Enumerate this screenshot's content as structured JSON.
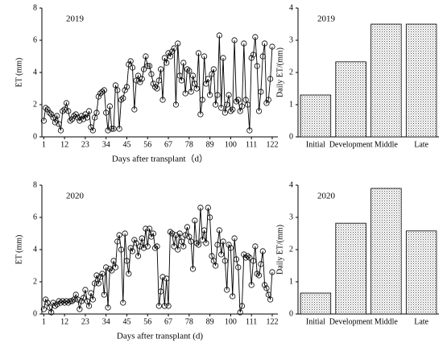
{
  "chart_data": [
    {
      "type": "line",
      "annotation": "2019",
      "xlabel": "Days after transplant（d）",
      "ylabel": "ET (mm)",
      "x": [
        1,
        2,
        3,
        4,
        5,
        6,
        7,
        8,
        9,
        10,
        11,
        12,
        13,
        14,
        15,
        16,
        17,
        18,
        19,
        20,
        21,
        22,
        23,
        24,
        25,
        26,
        27,
        28,
        29,
        30,
        31,
        32,
        33,
        34,
        35,
        36,
        37,
        38,
        39,
        40,
        41,
        42,
        43,
        44,
        45,
        46,
        47,
        48,
        49,
        50,
        51,
        52,
        53,
        54,
        55,
        56,
        57,
        58,
        59,
        60,
        61,
        62,
        63,
        64,
        65,
        66,
        67,
        68,
        69,
        70,
        71,
        72,
        73,
        74,
        75,
        76,
        77,
        78,
        79,
        80,
        81,
        82,
        83,
        84,
        85,
        86,
        87,
        88,
        89,
        90,
        91,
        92,
        93,
        94,
        95,
        96,
        97,
        98,
        99,
        100,
        101,
        102,
        103,
        104,
        105,
        106,
        107,
        108,
        109,
        110,
        111,
        112,
        113,
        114,
        115,
        116,
        117,
        118,
        119,
        120,
        121,
        122
      ],
      "series": [
        {
          "color": "#000000",
          "values": [
            1.0,
            1.8,
            1.7,
            1.5,
            1.4,
            1.2,
            0.9,
            1.3,
            0.8,
            0.4,
            1.6,
            1.7,
            2.1,
            1.6,
            1.0,
            1.1,
            1.3,
            1.4,
            1.2,
            1.0,
            1.3,
            1.1,
            1.4,
            1.2,
            1.6,
            0.6,
            0.4,
            1.2,
            1.5,
            2.5,
            2.7,
            2.8,
            2.9,
            1.5,
            0.4,
            1.9,
            0.5,
            0.5,
            3.2,
            2.9,
            0.5,
            2.3,
            2.4,
            2.9,
            3.1,
            4.5,
            4.7,
            4.3,
            1.7,
            3.5,
            3.8,
            3.4,
            3.6,
            4.2,
            5.0,
            4.4,
            4.4,
            3.9,
            3.3,
            3.1,
            3.0,
            3.5,
            4.2,
            2.3,
            4.9,
            4.6,
            5.2,
            5.0,
            5.3,
            5.5,
            2.0,
            5.8,
            3.8,
            3.5,
            4.6,
            2.7,
            4.2,
            4.1,
            2.8,
            3.8,
            3.3,
            3.0,
            5.2,
            1.4,
            2.3,
            5.0,
            3.3,
            3.6,
            2.6,
            3.9,
            4.2,
            2.0,
            2.6,
            6.3,
            1.8,
            4.9,
            1.5,
            2.0,
            2.6,
            1.6,
            1.7,
            6.0,
            2.2,
            2.3,
            1.6,
            1.9,
            5.8,
            2.3,
            2.0,
            0.4,
            4.9,
            5.1,
            6.2,
            4.4,
            1.6,
            2.8,
            5.0,
            5.8,
            2.1,
            2.3,
            3.6,
            5.6
          ]
        }
      ],
      "xlim": [
        0,
        125
      ],
      "xticks": [
        1,
        12,
        23,
        34,
        45,
        56,
        67,
        78,
        89,
        100,
        111,
        122
      ],
      "ylim": [
        0,
        8
      ],
      "yticks": [
        0,
        2,
        4,
        6,
        8
      ]
    },
    {
      "type": "bar",
      "annotation": "2019",
      "ylabel": "Daily ET/(mm)",
      "categories": [
        "Initial",
        "Development",
        "Middle",
        "Late"
      ],
      "values": [
        1.3,
        2.33,
        3.5,
        3.5
      ],
      "ylim": [
        0,
        4
      ],
      "yticks": [
        0,
        1,
        2,
        3,
        4
      ]
    },
    {
      "type": "line",
      "annotation": "2020",
      "xlabel": "Days after transplant (d)",
      "ylabel": "ET (mm)",
      "x": [
        1,
        2,
        3,
        4,
        5,
        6,
        7,
        8,
        9,
        10,
        11,
        12,
        13,
        14,
        15,
        16,
        17,
        18,
        19,
        20,
        21,
        22,
        23,
        24,
        25,
        26,
        27,
        28,
        29,
        30,
        31,
        32,
        33,
        34,
        35,
        36,
        37,
        38,
        39,
        40,
        41,
        42,
        43,
        44,
        45,
        46,
        47,
        48,
        49,
        50,
        51,
        52,
        53,
        54,
        55,
        56,
        57,
        58,
        59,
        60,
        61,
        62,
        63,
        64,
        65,
        66,
        67,
        68,
        69,
        70,
        71,
        72,
        73,
        74,
        75,
        76,
        77,
        78,
        79,
        80,
        81,
        82,
        83,
        84,
        85,
        86,
        87,
        88,
        89,
        90,
        91,
        92,
        93,
        94,
        95,
        96,
        97,
        98,
        99,
        100,
        101,
        102,
        103,
        104,
        105,
        106,
        107,
        108,
        109,
        110,
        111,
        112,
        113,
        114,
        115,
        116,
        117,
        118,
        119,
        120,
        121,
        122
      ],
      "series": [
        {
          "color": "#000000",
          "values": [
            0.3,
            0.9,
            0.7,
            0.4,
            0.1,
            0.7,
            0.5,
            0.6,
            0.8,
            0.7,
            0.8,
            0.7,
            0.8,
            0.7,
            0.8,
            0.8,
            0.9,
            1.2,
            0.9,
            0.3,
            0.8,
            1.0,
            1.5,
            0.8,
            0.5,
            1.3,
            0.9,
            1.9,
            2.4,
            1.9,
            2.3,
            2.5,
            1.2,
            2.9,
            0.4,
            2.8,
            2.7,
            3.3,
            2.9,
            4.5,
            4.9,
            4.0,
            0.7,
            5.0,
            3.3,
            2.5,
            4.1,
            3.9,
            4.6,
            4.4,
            3.6,
            4.2,
            4.7,
            4.1,
            5.3,
            4.2,
            5.3,
            4.8,
            5.0,
            4.1,
            4.2,
            0.5,
            1.4,
            2.3,
            0.5,
            2.2,
            0.5,
            5.1,
            5.0,
            4.2,
            4.9,
            4.0,
            5.0,
            4.5,
            4.2,
            4.9,
            5.4,
            4.8,
            4.5,
            2.8,
            5.8,
            4.4,
            4.3,
            6.6,
            4.6,
            5.2,
            4.4,
            6.6,
            6.0,
            3.6,
            3.3,
            3.0,
            4.3,
            5.2,
            3.7,
            4.5,
            3.3,
            1.5,
            4.3,
            4.1,
            1.1,
            4.7,
            3.4,
            2.9,
            0.1,
            0.5,
            3.7,
            3.5,
            3.6,
            3.5,
            1.8,
            3.3,
            4.2,
            2.5,
            2.4,
            3.1,
            3.9,
            1.8,
            1.6,
            1.2,
            0.9,
            2.6
          ]
        }
      ],
      "xlim": [
        0,
        125
      ],
      "xticks": [
        1,
        12,
        23,
        34,
        45,
        56,
        67,
        78,
        89,
        100,
        111,
        122
      ],
      "ylim": [
        0,
        8
      ],
      "yticks": [
        0,
        2,
        4,
        6,
        8
      ]
    },
    {
      "type": "bar",
      "annotation": "2020",
      "ylabel": "Daily ET/(mm)",
      "categories": [
        "Initial",
        "Development",
        "Middle",
        "Late"
      ],
      "values": [
        0.65,
        2.82,
        3.9,
        2.58
      ],
      "ylim": [
        0,
        4
      ],
      "yticks": [
        0,
        1,
        2,
        3,
        4
      ]
    }
  ]
}
